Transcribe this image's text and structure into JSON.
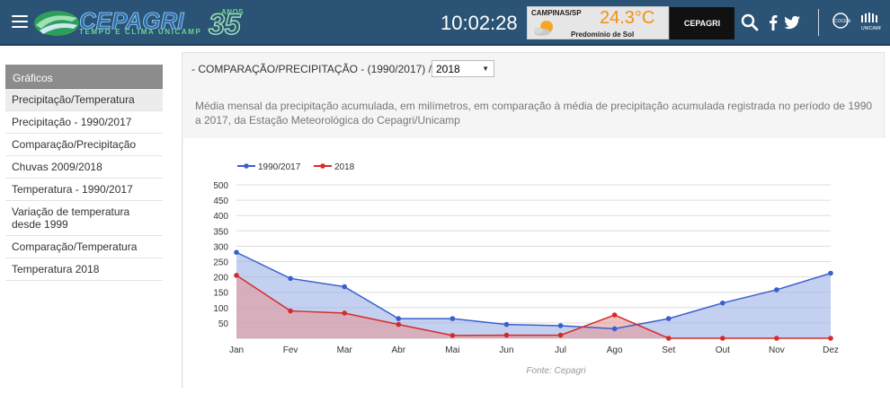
{
  "header": {
    "logo_text": "CEPAGRI",
    "logo_number": "35",
    "logo_anos": "ANOS",
    "logo_tagline": "TEMPO E CLIMA UNICAMP",
    "clock": "10:02:28",
    "weather": {
      "city": "CAMPINAS/SP",
      "temperature": "24.3°C",
      "condition": "Predomínio de Sol"
    },
    "cepagri_button": "CEPAGRI"
  },
  "sidebar": {
    "title": "Gráficos",
    "items": [
      {
        "label": "Precipitação/Temperatura",
        "active": true
      },
      {
        "label": "Precipitação - 1990/2017"
      },
      {
        "label": "Comparação/Precipitação"
      },
      {
        "label": "Chuvas 2009/2018"
      },
      {
        "label": "Temperatura - 1990/2017"
      },
      {
        "label": "Variação de temperatura desde 1999"
      },
      {
        "label": "Comparação/Temperatura"
      },
      {
        "label": "Temperatura 2018"
      }
    ]
  },
  "main": {
    "title": "- COMPARAÇÃO/PRECIPITAÇÃO - (1990/2017) /",
    "selected_year": "2018",
    "description": "Média mensal da precipitação acumulada, em milímetros, em comparação à média de precipitação acumulada registrada no período de 1990 a 2017, da Estação Meteorológica do Cepagri/Unicamp"
  },
  "chart_data": {
    "type": "area",
    "categories": [
      "Jan",
      "Fev",
      "Mar",
      "Abr",
      "Mai",
      "Jun",
      "Jul",
      "Ago",
      "Set",
      "Out",
      "Nov",
      "Dez"
    ],
    "series": [
      {
        "name": "1990/2017",
        "color": "#3a5fcd",
        "fill": "#9cb0e6",
        "values": [
          280,
          195,
          168,
          64,
          64,
          45,
          41,
          31,
          64,
          115,
          158,
          212
        ]
      },
      {
        "name": "2018",
        "color": "#d62a2a",
        "fill": "#e59a9a",
        "values": [
          205,
          89,
          82,
          45,
          9,
          10,
          10,
          76,
          0,
          0,
          0,
          0
        ]
      }
    ],
    "ylim": [
      0,
      500
    ],
    "yticks": [
      50,
      100,
      150,
      200,
      250,
      300,
      350,
      400,
      450,
      500
    ],
    "legend_position": "top-left",
    "source": "Fonte: Cepagri"
  }
}
